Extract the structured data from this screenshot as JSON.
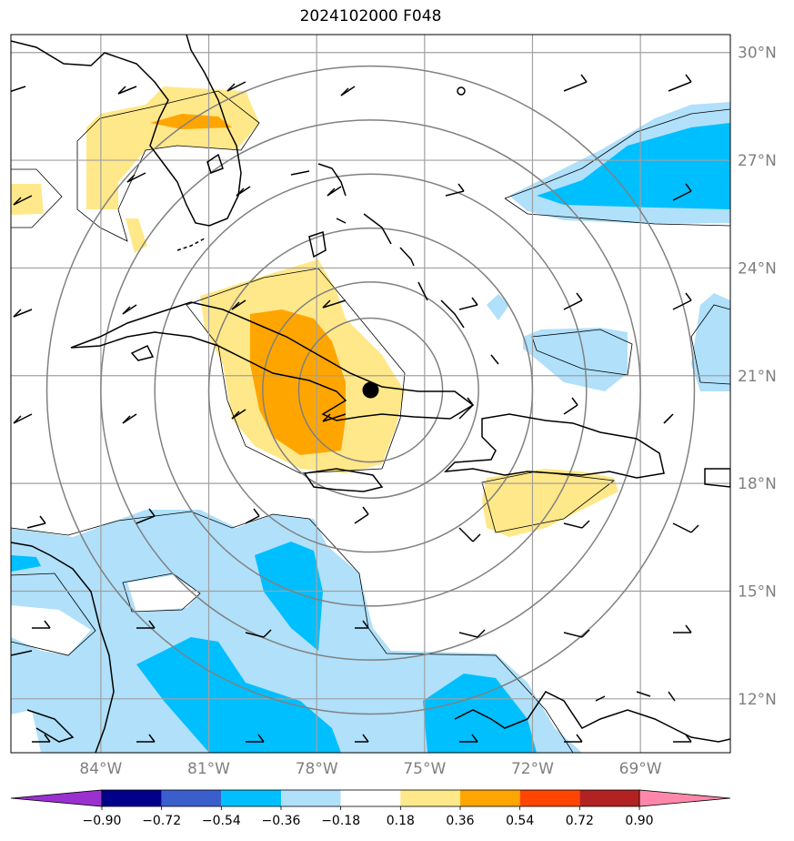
{
  "title": "2024102000 F048",
  "map": {
    "lat_labels": [
      {
        "text": "30°N",
        "lat": 30
      },
      {
        "text": "27°N",
        "lat": 27
      },
      {
        "text": "24°N",
        "lat": 24
      },
      {
        "text": "21°N",
        "lat": 21
      },
      {
        "text": "18°N",
        "lat": 18
      },
      {
        "text": "15°N",
        "lat": 15
      },
      {
        "text": "12°N",
        "lat": 12
      }
    ],
    "lon_labels": [
      {
        "text": "84°W",
        "lon": -84
      },
      {
        "text": "81°W",
        "lon": -81
      },
      {
        "text": "78°W",
        "lon": -78
      },
      {
        "text": "75°W",
        "lon": -75
      },
      {
        "text": "72°W",
        "lon": -72
      },
      {
        "text": "69°W",
        "lon": -69
      }
    ],
    "extent": {
      "lon_min": -86.5,
      "lon_max": -66.5,
      "lat_min": 10.5,
      "lat_max": 30.5
    },
    "storm_center": {
      "lon": -76.5,
      "lat": 20.6
    },
    "range_rings_deg": [
      2,
      3,
      4.5,
      6,
      7.5,
      9
    ],
    "colors": {
      "coast": "#000000",
      "grid": "#a0a0a0",
      "ring": "#808080"
    }
  },
  "colorbar": {
    "levels": [
      "−0.90",
      "−0.72",
      "−0.54",
      "−0.36",
      "−0.18",
      "0.18",
      "0.36",
      "0.54",
      "0.72",
      "0.90"
    ],
    "colors": [
      "#9b30d0",
      "#00008b",
      "#3a5fcd",
      "#00bfff",
      "#b0e0fa",
      "#ffffff",
      "#ffe88a",
      "#ffa500",
      "#ff4500",
      "#b22222",
      "#ff88aa"
    ]
  }
}
